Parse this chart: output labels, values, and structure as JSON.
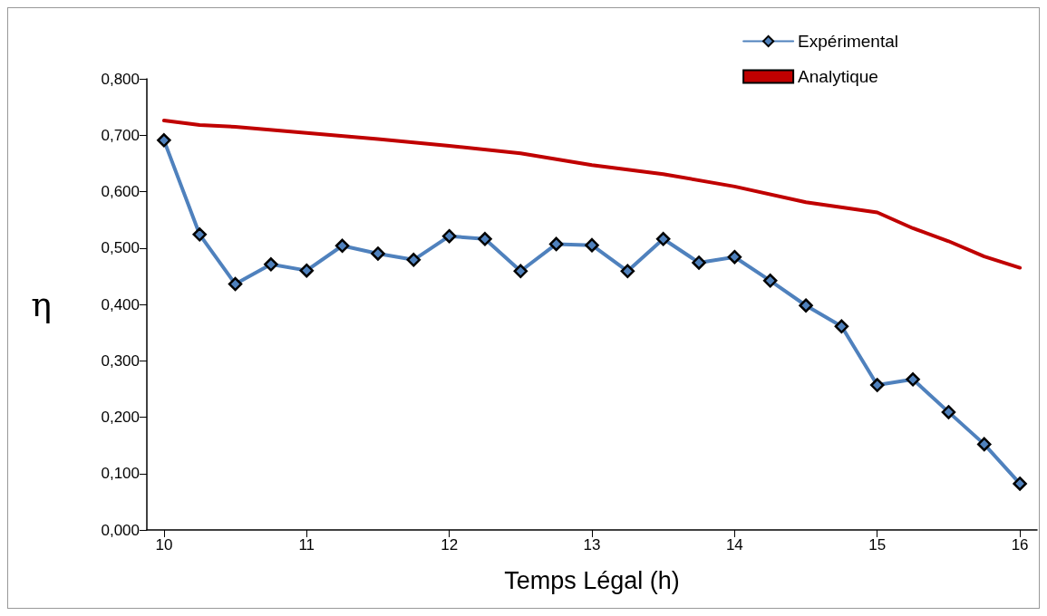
{
  "chart_data": {
    "type": "line",
    "xlabel": "Temps Légal (h)",
    "ylabel": "η",
    "xlim": [
      9.88,
      16.12
    ],
    "xticks": [
      10,
      11,
      12,
      13,
      14,
      15,
      16
    ],
    "ylim": [
      0,
      0.8
    ],
    "yticks": [
      {
        "value": 0,
        "label": "0,000"
      },
      {
        "value": 0.1,
        "label": "0,100"
      },
      {
        "value": 0.2,
        "label": "0,200"
      },
      {
        "value": 0.3,
        "label": "0,300"
      },
      {
        "value": 0.4,
        "label": "0,400"
      },
      {
        "value": 0.5,
        "label": "0,500"
      },
      {
        "value": 0.6,
        "label": "0,600"
      },
      {
        "value": 0.7,
        "label": "0,700"
      },
      {
        "value": 0.8,
        "label": "0,800"
      }
    ],
    "grid": false,
    "legend": "top right",
    "line_style": "solid",
    "series": [
      {
        "name": "Expérimental",
        "color": "#4f81bd",
        "marker": "diamond",
        "x": [
          10,
          10.25,
          10.5,
          10.75,
          11,
          11.25,
          11.5,
          11.75,
          12,
          12.25,
          12.5,
          12.75,
          13,
          13.25,
          13.5,
          13.75,
          14,
          14.25,
          14.5,
          14.75,
          15,
          15.25,
          15.5,
          15.75,
          16
        ],
        "values": [
          0.691,
          0.524,
          0.436,
          0.471,
          0.46,
          0.504,
          0.49,
          0.479,
          0.521,
          0.516,
          0.459,
          0.507,
          0.505,
          0.459,
          0.516,
          0.474,
          0.484,
          0.442,
          0.398,
          0.361,
          0.257,
          0.267,
          0.209,
          0.152,
          0.082
        ]
      },
      {
        "name": "Analytique",
        "color": "#c00000",
        "marker": "none",
        "x": [
          10,
          10.25,
          10.5,
          11,
          11.5,
          12,
          12.5,
          13,
          13.5,
          14,
          14.5,
          15,
          15.25,
          15.5,
          15.75,
          16
        ],
        "values": [
          0.726,
          0.718,
          0.715,
          0.704,
          0.693,
          0.681,
          0.668,
          0.647,
          0.631,
          0.609,
          0.581,
          0.563,
          0.535,
          0.512,
          0.485,
          0.465
        ]
      }
    ]
  }
}
